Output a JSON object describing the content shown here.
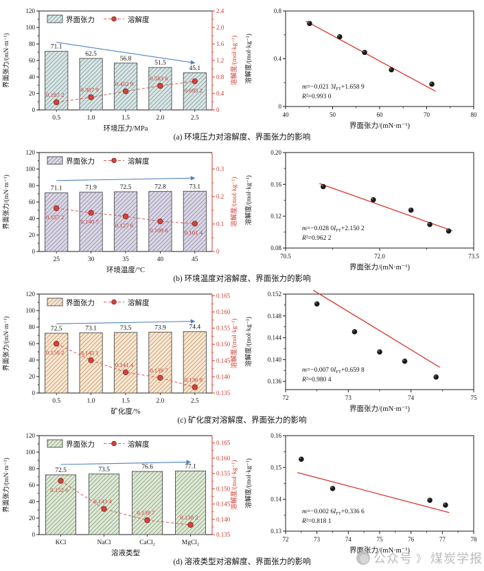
{
  "page": {
    "watermark": {
      "part1": "公众号",
      "sep": "》",
      "part2": "煤炭学报"
    }
  },
  "colors": {
    "accent_red": "#cf3a31",
    "arrow_blue": "#4f81bd",
    "axis_black": "#1a1a1a",
    "scatter_point": "#191919",
    "fit_line_red": "#d8352b"
  },
  "chart_data": [
    {
      "id": "a",
      "caption": "(a) 环境压力对溶解度、界面张力的影响",
      "bar_chart": {
        "type": "bar",
        "legend": [
          "界面张力",
          "溶解度"
        ],
        "xlabel": "环境压力/MPa",
        "ylabel_left": "界面张力/(mN·m⁻¹)",
        "ylabel_right": "溶解度/(mol·kg⁻¹)",
        "categories": [
          "0.5",
          "1.0",
          "1.5",
          "2.0",
          "2.5"
        ],
        "bar_values": [
          71.1,
          62.5,
          56.8,
          51.5,
          45.1
        ],
        "bar_labels": [
          "71.1",
          "62.5",
          "56.8",
          "51.5",
          "45.1"
        ],
        "sol_values": [
          0.1872,
          0.3079,
          0.4529,
          0.5836,
          0.6952
        ],
        "sol_labels": [
          "0.187 2",
          "0.307 9",
          "0.452 9",
          "0.583 6",
          "0.695 2"
        ],
        "ylim_left": [
          0,
          120
        ],
        "yticks_left": [
          0,
          20,
          40,
          60,
          80,
          100,
          120
        ],
        "right_axis": {
          "min": 0,
          "top": 2.4,
          "tick_values": [
            0,
            0.4,
            0.8,
            1.2,
            1.6,
            2.0,
            2.4
          ],
          "tick_labels": [
            "0",
            "0.4",
            "0.8",
            "1.2",
            "1.6",
            "2.0",
            "2.4"
          ]
        },
        "trend_arrow": {
          "from": 82,
          "to": 57
        },
        "bar_fill": "#d9e6e5",
        "hatch_color": "#8fa8a8"
      },
      "scatter_chart": {
        "type": "scatter",
        "xlabel": "界面张力/(mN·m⁻¹)",
        "ylabel": "溶解度/(mol·kg⁻¹)",
        "x": [
          45.1,
          51.5,
          56.8,
          62.5,
          71.1
        ],
        "y": [
          0.6952,
          0.5836,
          0.4529,
          0.3079,
          0.1872
        ],
        "xlim": [
          40,
          80
        ],
        "xticks": [
          40,
          50,
          60,
          70,
          80
        ],
        "xtick_labels": [
          "40",
          "50",
          "60",
          "70",
          "80"
        ],
        "ylim": [
          0,
          0.8
        ],
        "yticks": [
          0,
          0.4,
          0.8
        ],
        "ytick_labels": [
          "0",
          "0.4",
          "0.8"
        ],
        "fit": {
          "slope": -0.0213,
          "intercept": 1.6589
        },
        "equation": {
          "lhs": "m",
          "pre": "=−0.021 3",
          "var": "I",
          "sub": "FT",
          "post": "+1.658 9"
        },
        "r_squared": {
          "lhs": "R",
          "rest": "²=0.993 0"
        }
      }
    },
    {
      "id": "b",
      "caption": "(b) 环境温度对溶解度、界面张力的影响",
      "bar_chart": {
        "type": "bar",
        "legend": [
          "界面张力",
          "溶解度"
        ],
        "xlabel": "环境温度/°C",
        "ylabel_left": "界面张力/(mN·m⁻¹)",
        "ylabel_right": "溶解度/(mol·kg⁻¹)",
        "categories": [
          "25",
          "30",
          "35",
          "40",
          "45"
        ],
        "bar_values": [
          71.1,
          71.9,
          72.5,
          72.8,
          73.1
        ],
        "bar_labels": [
          "71.1",
          "71.9",
          "72.5",
          "72.8",
          "73.1"
        ],
        "sol_values": [
          0.1572,
          0.1407,
          0.1276,
          0.1096,
          0.1014
        ],
        "sol_labels": [
          "0.157 2",
          "0.140 7",
          "0.127 6",
          "0.109 6",
          "0.101 4"
        ],
        "ylim_left": [
          0,
          120
        ],
        "yticks_left": [
          0,
          20,
          40,
          60,
          80,
          100,
          120
        ],
        "right_axis": {
          "min": 0,
          "top": 0.36,
          "tick_values": [
            0,
            0.1,
            0.2,
            0.3
          ],
          "tick_labels": [
            "0",
            "0.1",
            "0.2",
            "0.3"
          ]
        },
        "trend_arrow": {
          "from": 86,
          "to": 89
        },
        "bar_fill": "#dbd8e4",
        "hatch_color": "#9d97b5"
      },
      "scatter_chart": {
        "type": "scatter",
        "xlabel": "界面张力/(mN·m⁻¹)",
        "ylabel": "溶解度/(mol·kg⁻¹)",
        "x": [
          71.1,
          71.9,
          72.5,
          72.8,
          73.1
        ],
        "y": [
          0.1572,
          0.1407,
          0.1276,
          0.1096,
          0.1014
        ],
        "xlim": [
          70.5,
          73.5
        ],
        "xticks": [
          70.5,
          72.0,
          73.5
        ],
        "xtick_labels": [
          "70.5",
          "72.0",
          "73.5"
        ],
        "ylim": [
          0.08,
          0.2
        ],
        "yticks": [
          0.08,
          0.12,
          0.16,
          0.2
        ],
        "ytick_labels": [
          "0.08",
          "0.12",
          "0.16",
          "0.20"
        ],
        "fit": {
          "slope": -0.028,
          "intercept": 2.1502
        },
        "equation": {
          "lhs": "m",
          "pre": "=−0.028 0",
          "var": "I",
          "sub": "FT",
          "post": "+2.150 2"
        },
        "r_squared": {
          "lhs": "R",
          "rest": "²=0.962 2"
        }
      }
    },
    {
      "id": "c",
      "caption": "(c) 矿化度对溶解度、界面张力的影响",
      "bar_chart": {
        "type": "bar",
        "legend": [
          "界面张力",
          "溶解度"
        ],
        "xlabel": "矿化度/%",
        "ylabel_left": "界面张力/(mN·m⁻¹)",
        "ylabel_right": "溶解度/(mol·kg⁻¹)",
        "categories": [
          "0.5",
          "1.0",
          "1.5",
          "2.0",
          "2.5"
        ],
        "bar_values": [
          72.5,
          73.1,
          73.5,
          73.9,
          74.4
        ],
        "bar_labels": [
          "72.5",
          "73.1",
          "73.5",
          "73.9",
          "74.4"
        ],
        "sol_values": [
          0.1502,
          0.1451,
          0.1414,
          0.1397,
          0.1368
        ],
        "sol_labels": [
          "0.150 2",
          "0.145 1",
          "0.141 4",
          "0.139 7",
          "0.136 8"
        ],
        "ylim_left": [
          0,
          120
        ],
        "yticks_left": [
          0,
          20,
          40,
          60,
          80,
          100,
          120
        ],
        "right_axis": {
          "min": 0.135,
          "top": 0.1655,
          "tick_values": [
            0.135,
            0.14,
            0.145,
            0.15,
            0.155,
            0.16,
            0.165
          ],
          "tick_labels": [
            "0.135",
            "0.140",
            "0.145",
            "0.150",
            "0.155",
            "0.160",
            "0.165"
          ]
        },
        "trend_arrow": {
          "from": 84,
          "to": 87
        },
        "bar_fill": "#f9e7d2",
        "hatch_color": "#c9a67f"
      },
      "scatter_chart": {
        "type": "scatter",
        "xlabel": "界面张力/(mN·m⁻¹)",
        "ylabel": "溶解度/(mol·kg⁻¹)",
        "x": [
          72.5,
          73.1,
          73.5,
          73.9,
          74.4
        ],
        "y": [
          0.1502,
          0.1451,
          0.1414,
          0.1397,
          0.1368
        ],
        "xlim": [
          72,
          75
        ],
        "xticks": [
          72,
          73,
          74,
          75
        ],
        "xtick_labels": [
          "72",
          "73",
          "74",
          "75"
        ],
        "ylim": [
          0.1345,
          0.152
        ],
        "yticks": [
          0.136,
          0.14,
          0.144,
          0.148,
          0.152
        ],
        "ytick_labels": [
          "0.136",
          "0.140",
          "0.144",
          "0.148",
          "0.152"
        ],
        "fit": {
          "slope": -0.007,
          "intercept": 0.6598
        },
        "equation": {
          "lhs": "m",
          "pre": "=−0.007 0",
          "var": "I",
          "sub": "FT",
          "post": "+0.659 8"
        },
        "r_squared": {
          "lhs": "R",
          "rest": "²=0.980 4"
        }
      }
    },
    {
      "id": "d",
      "caption": "(d) 溶液类型对溶解度、界面张力的影响",
      "bar_chart": {
        "type": "bar",
        "legend": [
          "界面张力",
          "溶解度"
        ],
        "xlabel": "溶液类型",
        "ylabel_left": "界面张力/(mN·m⁻¹)",
        "ylabel_right": "溶解度/(mol·kg⁻¹)",
        "categories": [
          "KCl",
          "NaCl",
          "CaCl₂",
          "MgCl₂"
        ],
        "bar_values": [
          72.5,
          73.5,
          76.6,
          77.1
        ],
        "bar_labels": [
          "72.5",
          "73.5",
          "76.6",
          "77.1"
        ],
        "sol_values": [
          0.1526,
          0.1434,
          0.1397,
          0.1382
        ],
        "sol_labels": [
          "0.152 6",
          "0.143 4",
          "0.139 7",
          "0.138 2"
        ],
        "ylim_left": [
          0,
          120
        ],
        "yticks_left": [
          0,
          20,
          40,
          60,
          80,
          100,
          120
        ],
        "right_axis": {
          "min": 0.135,
          "top": 0.1674,
          "tick_values": [
            0.135,
            0.14,
            0.145,
            0.15,
            0.155,
            0.16,
            0.165
          ],
          "tick_labels": [
            "0.135",
            "0.140",
            "0.145",
            "0.150",
            "0.155",
            "0.160",
            "0.165"
          ]
        },
        "trend_arrow": {
          "from": 85,
          "to": 88
        },
        "bar_fill": "#dfe9d7",
        "hatch_color": "#97ad8d"
      },
      "scatter_chart": {
        "type": "scatter",
        "xlabel": "界面张力/(mN·m⁻¹)",
        "ylabel": "溶解度/(mol·kg⁻¹)",
        "x": [
          72.5,
          73.5,
          76.6,
          77.1
        ],
        "y": [
          0.1526,
          0.1434,
          0.1397,
          0.1382
        ],
        "xlim": [
          72,
          78
        ],
        "xticks": [
          72,
          73,
          74,
          75,
          76,
          77,
          78
        ],
        "xtick_labels": [
          "72",
          "73",
          "74",
          "75",
          "76",
          "77",
          "78"
        ],
        "ylim": [
          0.13,
          0.16
        ],
        "yticks": [
          0.13,
          0.14,
          0.15,
          0.16
        ],
        "ytick_labels": [
          "0.13",
          "0.14",
          "0.15",
          "0.16"
        ],
        "fit": {
          "slope": -0.0026,
          "intercept": 0.3366
        },
        "equation": {
          "lhs": "m",
          "pre": "=−0.002 6",
          "var": "I",
          "sub": "FT",
          "post": "+0.336 6"
        },
        "r_squared": {
          "lhs": "R",
          "rest": "²=0.818 1"
        }
      }
    }
  ]
}
